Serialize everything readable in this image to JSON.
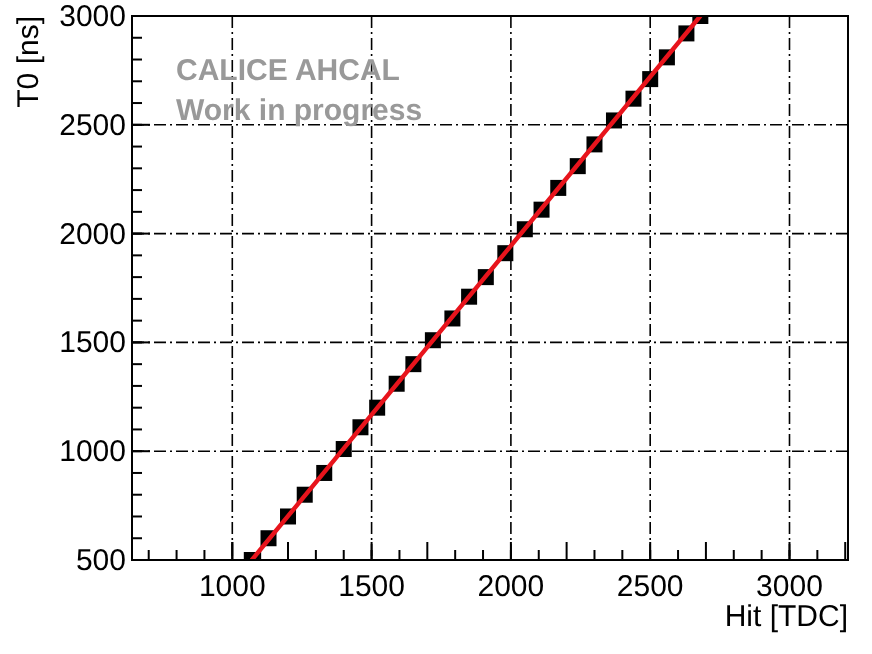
{
  "chart_data": {
    "type": "scatter",
    "xlabel": "Hit [TDC]",
    "ylabel": "T0 [ns]",
    "xlim": [
      640,
      3210
    ],
    "ylim": [
      500,
      3000
    ],
    "xticks": [
      1000,
      1500,
      2000,
      2500,
      3000
    ],
    "yticks": [
      500,
      1000,
      1500,
      2000,
      2500,
      3000
    ],
    "grid": true,
    "annotations": [
      "CALICE AHCAL",
      "Work in progress"
    ],
    "series": [
      {
        "color": "#000000",
        "marker": "square",
        "x": [
          1070,
          1130,
          1200,
          1260,
          1330,
          1400,
          1460,
          1520,
          1590,
          1650,
          1720,
          1790,
          1850,
          1910,
          1980,
          2050,
          2110,
          2170,
          2240,
          2300,
          2370,
          2440,
          2500,
          2560,
          2630,
          2680
        ],
        "values": [
          500,
          600,
          700,
          800,
          900,
          1010,
          1110,
          1200,
          1310,
          1400,
          1510,
          1610,
          1710,
          1800,
          1910,
          2020,
          2110,
          2210,
          2310,
          2410,
          2520,
          2620,
          2710,
          2810,
          2920,
          3000
        ]
      },
      {
        "type": "line",
        "color": "#e8141c",
        "line_style": "solid",
        "x": [
          1070,
          2680
        ],
        "values": [
          500,
          3000
        ]
      }
    ]
  }
}
